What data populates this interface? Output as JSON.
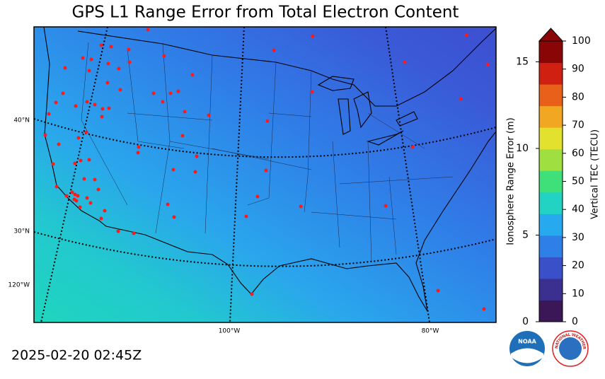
{
  "title": "GPS L1 Range Error from Total Electron Content",
  "timestamp": "2025-02-20 02:45Z",
  "map": {
    "lat_labels": [
      "40°N",
      "30°N",
      "120°W"
    ],
    "lon_labels": [
      "100°W",
      "80°W"
    ]
  },
  "colorbar": {
    "label": "Vertical TEC (TECU)",
    "lim": [
      0,
      100
    ],
    "ticks": [
      0,
      10,
      20,
      30,
      40,
      50,
      60,
      70,
      80,
      90,
      100
    ],
    "colors": [
      "#3b1758",
      "#3b2f8f",
      "#3950c8",
      "#2f7fe8",
      "#26a9ef",
      "#22d3c3",
      "#3fe07a",
      "#9fe040",
      "#e2e22e",
      "#f2a722",
      "#e8601a",
      "#cf2012",
      "#8a0505"
    ],
    "range_error": {
      "label": "Ionosphere Range Error (m)",
      "lim": [
        0,
        16.2
      ],
      "ticks": [
        0,
        5,
        10,
        15
      ]
    }
  },
  "logos": [
    "NOAA",
    "NATIONAL WEATHER SERVICE"
  ]
}
